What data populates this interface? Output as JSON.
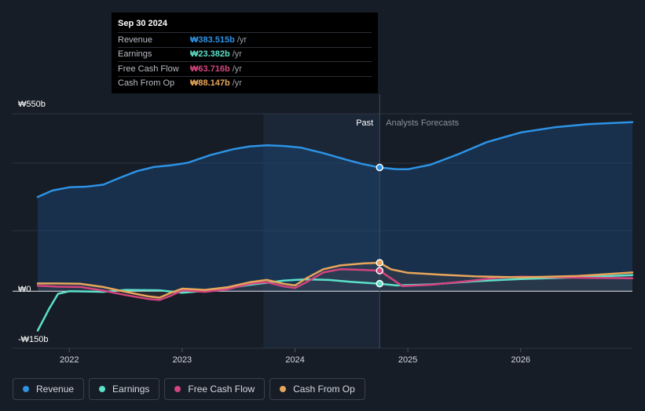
{
  "chart_data": {
    "type": "line",
    "title": "",
    "y_unit": "₩ billions",
    "y_ticks": [
      {
        "label": "₩550b",
        "value": 550
      },
      {
        "label": "₩0",
        "value": 0
      },
      {
        "label": "-₩150b",
        "value": -150
      }
    ],
    "ylim": [
      -150,
      550
    ],
    "x_ticks": [
      "2022",
      "2023",
      "2024",
      "2025",
      "2026"
    ],
    "xlim": [
      2021.72,
      2026.99
    ],
    "past_label": "Past",
    "forecast_label": "Analysts Forecasts",
    "highlight_start": 2023.72,
    "divider_x": 2024.75,
    "series": [
      {
        "name": "Revenue",
        "color": "#2d93e6",
        "fill": true,
        "points": [
          [
            2021.72,
            292
          ],
          [
            2021.85,
            312
          ],
          [
            2022.0,
            322
          ],
          [
            2022.15,
            324
          ],
          [
            2022.3,
            330
          ],
          [
            2022.45,
            352
          ],
          [
            2022.6,
            372
          ],
          [
            2022.75,
            385
          ],
          [
            2022.9,
            390
          ],
          [
            2023.05,
            398
          ],
          [
            2023.25,
            422
          ],
          [
            2023.45,
            440
          ],
          [
            2023.6,
            449
          ],
          [
            2023.75,
            452
          ],
          [
            2023.9,
            450
          ],
          [
            2024.05,
            445
          ],
          [
            2024.25,
            428
          ],
          [
            2024.45,
            408
          ],
          [
            2024.6,
            394
          ],
          [
            2024.75,
            383.5
          ],
          [
            2024.9,
            378
          ],
          [
            2025.0,
            378
          ],
          [
            2025.2,
            392
          ],
          [
            2025.45,
            425
          ],
          [
            2025.7,
            462
          ],
          [
            2026.0,
            492
          ],
          [
            2026.3,
            508
          ],
          [
            2026.6,
            518
          ],
          [
            2026.99,
            524
          ]
        ]
      },
      {
        "name": "Earnings",
        "color": "#5ce0c8",
        "points": [
          [
            2021.72,
            -122
          ],
          [
            2021.82,
            -55
          ],
          [
            2021.9,
            -8
          ],
          [
            2022.0,
            0
          ],
          [
            2022.3,
            -2
          ],
          [
            2022.5,
            4
          ],
          [
            2022.8,
            3
          ],
          [
            2023.0,
            -5
          ],
          [
            2023.3,
            4
          ],
          [
            2023.6,
            20
          ],
          [
            2023.9,
            33
          ],
          [
            2024.1,
            37
          ],
          [
            2024.3,
            35
          ],
          [
            2024.5,
            29
          ],
          [
            2024.75,
            23.4
          ],
          [
            2024.9,
            18
          ],
          [
            2025.2,
            21
          ],
          [
            2025.6,
            31
          ],
          [
            2026.0,
            38
          ],
          [
            2026.5,
            43
          ],
          [
            2026.99,
            50
          ]
        ]
      },
      {
        "name": "Free Cash Flow",
        "color": "#d4447f",
        "points": [
          [
            2021.72,
            17
          ],
          [
            2021.9,
            14
          ],
          [
            2022.1,
            13
          ],
          [
            2022.3,
            2
          ],
          [
            2022.5,
            -12
          ],
          [
            2022.7,
            -24
          ],
          [
            2022.8,
            -27
          ],
          [
            2022.9,
            -14
          ],
          [
            2023.0,
            3
          ],
          [
            2023.2,
            -2
          ],
          [
            2023.4,
            6
          ],
          [
            2023.6,
            23
          ],
          [
            2023.75,
            28
          ],
          [
            2023.9,
            15
          ],
          [
            2024.0,
            10
          ],
          [
            2024.1,
            28
          ],
          [
            2024.25,
            58
          ],
          [
            2024.4,
            68
          ],
          [
            2024.6,
            66
          ],
          [
            2024.75,
            63.7
          ],
          [
            2024.85,
            40
          ],
          [
            2024.95,
            16
          ],
          [
            2025.2,
            20
          ],
          [
            2025.5,
            30
          ],
          [
            2025.8,
            42
          ],
          [
            2026.0,
            45
          ],
          [
            2026.5,
            42
          ],
          [
            2026.99,
            40
          ]
        ]
      },
      {
        "name": "Cash From Op",
        "color": "#e8a65a",
        "points": [
          [
            2021.72,
            24
          ],
          [
            2021.9,
            24
          ],
          [
            2022.1,
            23
          ],
          [
            2022.3,
            13
          ],
          [
            2022.5,
            -2
          ],
          [
            2022.7,
            -16
          ],
          [
            2022.8,
            -20
          ],
          [
            2022.9,
            -5
          ],
          [
            2023.0,
            8
          ],
          [
            2023.2,
            4
          ],
          [
            2023.4,
            12
          ],
          [
            2023.6,
            28
          ],
          [
            2023.75,
            35
          ],
          [
            2023.9,
            23
          ],
          [
            2024.0,
            18
          ],
          [
            2024.1,
            40
          ],
          [
            2024.25,
            68
          ],
          [
            2024.4,
            80
          ],
          [
            2024.6,
            86
          ],
          [
            2024.75,
            88.1
          ],
          [
            2024.85,
            68
          ],
          [
            2025.0,
            57
          ],
          [
            2025.3,
            51
          ],
          [
            2025.6,
            46
          ],
          [
            2026.0,
            43
          ],
          [
            2026.5,
            47
          ],
          [
            2026.99,
            58
          ]
        ]
      }
    ]
  },
  "tooltip": {
    "date": "Sep 30 2024",
    "rows": [
      {
        "label": "Revenue",
        "value": "₩383.515b",
        "unit": "/yr",
        "color": "#2d93e6"
      },
      {
        "label": "Earnings",
        "value": "₩23.382b",
        "unit": "/yr",
        "color": "#5ce0c8"
      },
      {
        "label": "Free Cash Flow",
        "value": "₩63.716b",
        "unit": "/yr",
        "color": "#d4447f"
      },
      {
        "label": "Cash From Op",
        "value": "₩88.147b",
        "unit": "/yr",
        "color": "#e8a65a"
      }
    ]
  },
  "legend": [
    {
      "label": "Revenue",
      "color": "#2d93e6"
    },
    {
      "label": "Earnings",
      "color": "#5ce0c8"
    },
    {
      "label": "Free Cash Flow",
      "color": "#d4447f"
    },
    {
      "label": "Cash From Op",
      "color": "#e8a65a"
    }
  ]
}
